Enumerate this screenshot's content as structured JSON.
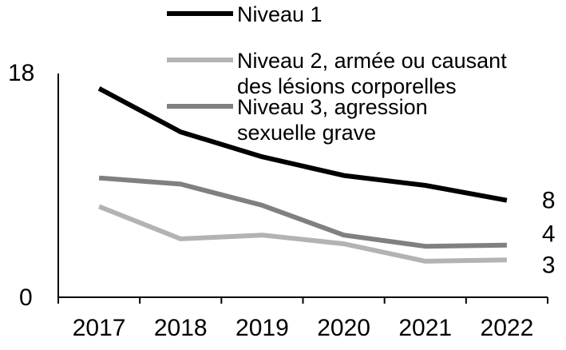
{
  "chart_data": {
    "type": "line",
    "categories": [
      "2017",
      "2018",
      "2019",
      "2020",
      "2021",
      "2022"
    ],
    "ylim": [
      0,
      18
    ],
    "y_ticks": [
      "0",
      "18"
    ],
    "grid": false,
    "legend_position": "top",
    "series": [
      {
        "name": "Niveau 1",
        "color": "#000000",
        "values": [
          16.8,
          13.3,
          11.3,
          9.8,
          9.0,
          7.8
        ],
        "end_label": "8"
      },
      {
        "name": "Niveau 2, armée ou causant des lésions corporelles",
        "name_lines": [
          "Niveau 2, armée ou causant",
          "des lésions corporelles"
        ],
        "color": "#b3b3b3",
        "values": [
          7.3,
          4.7,
          5.0,
          4.3,
          2.9,
          3.0
        ],
        "end_label": "3"
      },
      {
        "name": "Niveau 3, agression sexuelle grave",
        "name_lines": [
          "Niveau 3, agression",
          "sexuelle grave"
        ],
        "color": "#808080",
        "values": [
          9.6,
          9.1,
          7.4,
          5.0,
          4.1,
          4.2
        ],
        "end_label": "4"
      }
    ]
  }
}
